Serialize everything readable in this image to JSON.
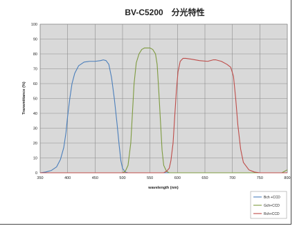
{
  "chart_data": {
    "type": "line",
    "title": "BV-C5200　分光特性",
    "xlabel": "wavelength (nm)",
    "ylabel": "Transmittance (%)",
    "xlim": [
      350,
      800
    ],
    "ylim": [
      0,
      100
    ],
    "x_ticks": [
      350,
      400,
      450,
      500,
      550,
      600,
      650,
      700,
      750,
      800
    ],
    "y_ticks": [
      0,
      10,
      20,
      30,
      40,
      50,
      60,
      70,
      80,
      90,
      100
    ],
    "grid": true,
    "legend_position": "bottom-right",
    "series": [
      {
        "name": "Bch +CCD",
        "color": "#4a7ebb",
        "points": [
          [
            350,
            0
          ],
          [
            360,
            0.5
          ],
          [
            370,
            1.5
          ],
          [
            380,
            4
          ],
          [
            387,
            9
          ],
          [
            393,
            17
          ],
          [
            397,
            27
          ],
          [
            400,
            38
          ],
          [
            404,
            50
          ],
          [
            408,
            60
          ],
          [
            413,
            67
          ],
          [
            420,
            72
          ],
          [
            430,
            74.5
          ],
          [
            440,
            75
          ],
          [
            450,
            75
          ],
          [
            460,
            75.5
          ],
          [
            465,
            76
          ],
          [
            470,
            75.5
          ],
          [
            475,
            73
          ],
          [
            480,
            64
          ],
          [
            485,
            50
          ],
          [
            490,
            33
          ],
          [
            494,
            18
          ],
          [
            497,
            8
          ],
          [
            500,
            3
          ],
          [
            505,
            0.5
          ],
          [
            510,
            0
          ],
          [
            800,
            0
          ]
        ]
      },
      {
        "name": "Gch+CCD",
        "color": "#7d9a3e",
        "points": [
          [
            350,
            0
          ],
          [
            500,
            0
          ],
          [
            505,
            1
          ],
          [
            510,
            5
          ],
          [
            515,
            20
          ],
          [
            518,
            40
          ],
          [
            521,
            60
          ],
          [
            525,
            74
          ],
          [
            530,
            80
          ],
          [
            535,
            83
          ],
          [
            540,
            84
          ],
          [
            550,
            84
          ],
          [
            555,
            83
          ],
          [
            560,
            80
          ],
          [
            563,
            73
          ],
          [
            566,
            55
          ],
          [
            569,
            35
          ],
          [
            572,
            15
          ],
          [
            575,
            5
          ],
          [
            580,
            1
          ],
          [
            585,
            0
          ],
          [
            790,
            0
          ],
          [
            795,
            1
          ],
          [
            800,
            2
          ]
        ]
      },
      {
        "name": "Rch+CCD",
        "color": "#be4b48",
        "points": [
          [
            350,
            0
          ],
          [
            575,
            0
          ],
          [
            580,
            1
          ],
          [
            585,
            3
          ],
          [
            588,
            8
          ],
          [
            592,
            20
          ],
          [
            595,
            38
          ],
          [
            598,
            55
          ],
          [
            601,
            68
          ],
          [
            605,
            75
          ],
          [
            610,
            77
          ],
          [
            615,
            77
          ],
          [
            625,
            76.5
          ],
          [
            640,
            75.5
          ],
          [
            655,
            75
          ],
          [
            665,
            76
          ],
          [
            670,
            76
          ],
          [
            680,
            75
          ],
          [
            690,
            73
          ],
          [
            697,
            71
          ],
          [
            702,
            65
          ],
          [
            706,
            50
          ],
          [
            710,
            32
          ],
          [
            715,
            16
          ],
          [
            720,
            7
          ],
          [
            730,
            2
          ],
          [
            740,
            0.5
          ],
          [
            750,
            0
          ],
          [
            800,
            0
          ]
        ]
      }
    ]
  }
}
